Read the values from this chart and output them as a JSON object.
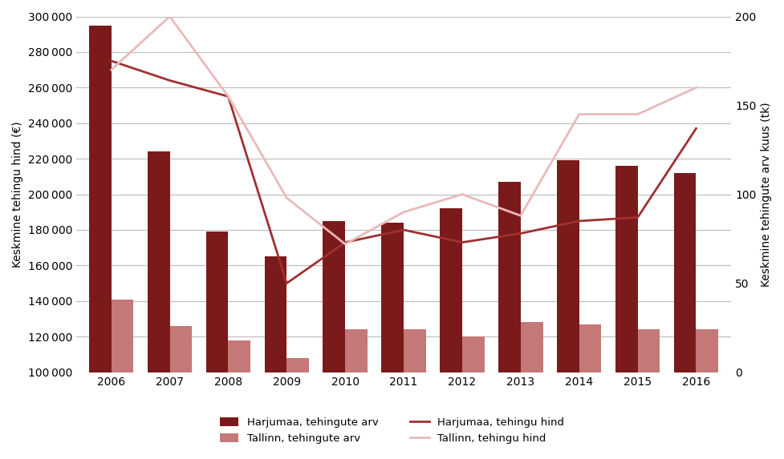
{
  "years": [
    2006,
    2007,
    2008,
    2009,
    2010,
    2011,
    2012,
    2013,
    2014,
    2015,
    2016
  ],
  "harjumaa_price": [
    295000,
    224000,
    179000,
    165000,
    185000,
    184000,
    192000,
    207000,
    219000,
    216000,
    212000
  ],
  "tallinn_price": [
    141000,
    126000,
    118000,
    108000,
    124000,
    124000,
    120000,
    128000,
    127000,
    124000,
    124000
  ],
  "harjumaa_count": [
    175,
    164,
    155,
    50,
    73,
    80,
    73,
    78,
    85,
    87,
    137
  ],
  "tallinn_count": [
    170,
    200,
    155,
    98,
    72,
    90,
    100,
    88,
    145,
    145,
    160
  ],
  "bar_color_harjumaa": "#7B1A1A",
  "bar_color_tallinn": "#C47878",
  "line_color_harjumaa": "#A03030",
  "line_color_tallinn": "#E8BABA",
  "ylabel_left": "Keskmine tehingu hind (€)",
  "ylabel_right": "Keskmine tehingute arv kuus (tk)",
  "ylim_left": [
    100000,
    300000
  ],
  "ylim_right": [
    0,
    200
  ],
  "yticks_left": [
    100000,
    120000,
    140000,
    160000,
    180000,
    200000,
    220000,
    240000,
    260000,
    280000,
    300000
  ],
  "yticks_right": [
    0,
    50,
    100,
    150,
    200
  ],
  "legend_labels": [
    "Harjumaa, tehingute arv",
    "Tallinn, tehingute arv",
    "Harjumaa, tehingu hind",
    "Tallinn, tehingu hind"
  ],
  "background_color": "#FFFFFF",
  "grid_color": "#BBBBBB",
  "linewidth": 2.0
}
